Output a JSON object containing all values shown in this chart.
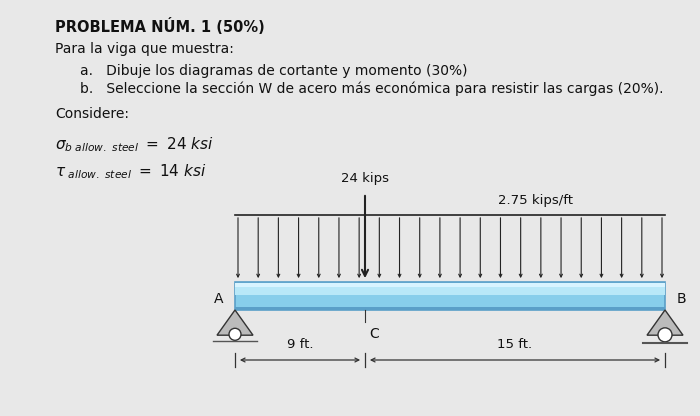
{
  "title": "PROBLEMA NÚM. 1 (50%)",
  "para_text": "Para la viga que muestra:",
  "item_a": "a.   Dibuje los diagramas de cortante y momento (30%)",
  "item_b": "b.   Seleccione la sección W de acero más económica para resistir las cargas (20%).",
  "considere_text": "Considere:",
  "load_label": "24 kips",
  "dist_load_label": "2.75 kips/ft",
  "support_A": "A",
  "support_B": "B",
  "point_C": "C",
  "dim1": "9 ft.",
  "dim2": "15 ft.",
  "background_color": "#e8e8e8",
  "beam_color": "#87ceeb",
  "beam_highlight": "#c8ecf8",
  "beam_edge": "#5a9fc8",
  "beam_dark": "#5a9fc8",
  "arrow_color": "#222222",
  "text_color": "#111111",
  "bx0": 0.315,
  "bx1": 0.955,
  "by0": 0.2,
  "by1": 0.3,
  "plx": 0.505,
  "n_arrows": 22
}
